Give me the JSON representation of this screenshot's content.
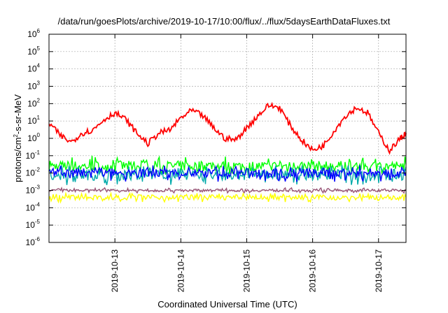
{
  "chart_data": {
    "type": "line",
    "title": "/data/run/goesPlots/archive/2019-10-17/10:00/flux/../flux/5daysEarthDataFluxes.txt",
    "xlabel": "Coordinated Universal Time (UTC)",
    "ylabel_parts": [
      "protons/cm",
      "2",
      "-s-sr-MeV"
    ],
    "y_scale": "log",
    "ylim": [
      1e-06,
      1000000.0
    ],
    "y_ticks": [
      {
        "base": "10",
        "exp": "-6"
      },
      {
        "base": "10",
        "exp": "-5"
      },
      {
        "base": "10",
        "exp": "-4"
      },
      {
        "base": "10",
        "exp": "-3"
      },
      {
        "base": "10",
        "exp": "-2"
      },
      {
        "base": "10",
        "exp": "-1"
      },
      {
        "base": "10",
        "exp": "0"
      },
      {
        "base": "10",
        "exp": "1"
      },
      {
        "base": "10",
        "exp": "2"
      },
      {
        "base": "10",
        "exp": "3"
      },
      {
        "base": "10",
        "exp": "4"
      },
      {
        "base": "10",
        "exp": "5"
      },
      {
        "base": "10",
        "exp": "6"
      }
    ],
    "xlim": [
      "2019-10-12 00:00",
      "2019-10-17 10:00"
    ],
    "x_ticks": [
      "2019-10-13",
      "2019-10-14",
      "2019-10-15",
      "2019-10-16",
      "2019-10-17"
    ],
    "grid": true,
    "series": [
      {
        "color": "#ff0000",
        "x": [
          "2019-10-12 00:00",
          "2019-10-12 04:00",
          "2019-10-12 08:00",
          "2019-10-12 12:00",
          "2019-10-12 16:00",
          "2019-10-12 20:00",
          "2019-10-13 00:00",
          "2019-10-13 04:00",
          "2019-10-13 08:00",
          "2019-10-13 12:00",
          "2019-10-13 16:00",
          "2019-10-13 20:00",
          "2019-10-14 00:00",
          "2019-10-14 04:00",
          "2019-10-14 08:00",
          "2019-10-14 12:00",
          "2019-10-14 16:00",
          "2019-10-14 20:00",
          "2019-10-15 00:00",
          "2019-10-15 04:00",
          "2019-10-15 08:00",
          "2019-10-15 12:00",
          "2019-10-15 16:00",
          "2019-10-15 20:00",
          "2019-10-16 00:00",
          "2019-10-16 04:00",
          "2019-10-16 08:00",
          "2019-10-16 12:00",
          "2019-10-16 16:00",
          "2019-10-16 20:00",
          "2019-10-17 00:00",
          "2019-10-17 04:00",
          "2019-10-17 08:00",
          "2019-10-17 10:00"
        ],
        "y": [
          8,
          1.5,
          0.6,
          2,
          3,
          12,
          30,
          12,
          2,
          0.5,
          2,
          3,
          15,
          40,
          20,
          4,
          1,
          0.8,
          4,
          20,
          80,
          60,
          5,
          0.8,
          0.2,
          0.4,
          3,
          20,
          60,
          30,
          2,
          0.2,
          1,
          2
        ]
      },
      {
        "color": "#00ff00",
        "level": 0.025,
        "spread": [
          0.008,
          0.1
        ]
      },
      {
        "color": "#00aaaa",
        "level": 0.008,
        "spread": [
          0.002,
          0.03
        ]
      },
      {
        "color": "#0000ff",
        "level": 0.01,
        "spread": [
          0.003,
          0.03
        ]
      },
      {
        "color": "#995577",
        "level": 0.001,
        "spread": [
          0.0007,
          0.0014
        ]
      },
      {
        "color": "#ffff00",
        "level": 0.0004,
        "spread": [
          0.0002,
          0.0007
        ]
      }
    ]
  }
}
